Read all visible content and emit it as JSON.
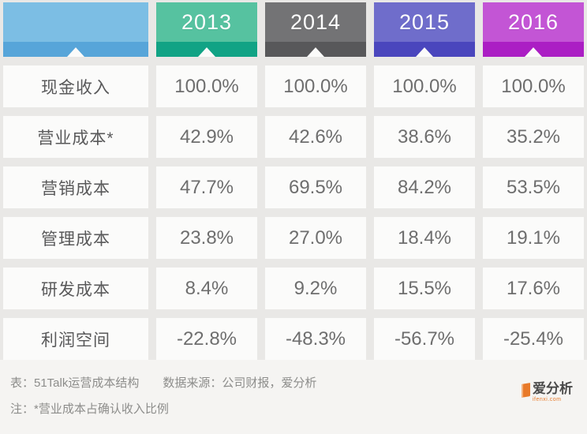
{
  "chart_data": {
    "type": "table",
    "title": "51Talk运营成本结构",
    "columns": [
      "",
      "2013",
      "2014",
      "2015",
      "2016"
    ],
    "rows": [
      {
        "label": "现金收入",
        "values_pct": [
          100.0,
          100.0,
          100.0,
          100.0
        ]
      },
      {
        "label": "营业成本*",
        "values_pct": [
          42.9,
          42.6,
          38.6,
          35.2
        ]
      },
      {
        "label": "营销成本",
        "values_pct": [
          47.7,
          69.5,
          84.2,
          53.5
        ]
      },
      {
        "label": "管理成本",
        "values_pct": [
          23.8,
          27.0,
          18.4,
          19.1
        ]
      },
      {
        "label": "研发成本",
        "values_pct": [
          8.4,
          9.2,
          15.5,
          17.6
        ]
      },
      {
        "label": "利润空间",
        "values_pct": [
          -22.8,
          -48.3,
          -56.7,
          -25.4
        ]
      }
    ],
    "source": "数据来源：公司财报，爱分析",
    "note": "注：*营业成本占确认收入比例"
  },
  "table": {
    "years": [
      "2013",
      "2014",
      "2015",
      "2016"
    ],
    "header_colors": [
      {
        "main": "#7cbee4",
        "strip": "#57a5d9"
      },
      {
        "main": "#56c2a0",
        "strip": "#11a385"
      },
      {
        "main": "#737375",
        "strip": "#58585a"
      },
      {
        "main": "#6f6dcb",
        "strip": "#4a46bd"
      },
      {
        "main": "#c355d5",
        "strip": "#ab1ec4"
      }
    ],
    "rows": [
      {
        "label": "现金收入",
        "values": [
          "100.0%",
          "100.0%",
          "100.0%",
          "100.0%"
        ]
      },
      {
        "label": "营业成本*",
        "values": [
          "42.9%",
          "42.6%",
          "38.6%",
          "35.2%"
        ]
      },
      {
        "label": "营销成本",
        "values": [
          "47.7%",
          "69.5%",
          "84.2%",
          "53.5%"
        ]
      },
      {
        "label": "管理成本",
        "values": [
          "23.8%",
          "27.0%",
          "18.4%",
          "19.1%"
        ]
      },
      {
        "label": "研发成本",
        "values": [
          "8.4%",
          "9.2%",
          "15.5%",
          "17.6%"
        ]
      },
      {
        "label": "利润空间",
        "values": [
          "-22.8%",
          "-48.3%",
          "-56.7%",
          "-25.4%"
        ]
      }
    ]
  },
  "footer": {
    "caption": "表：51Talk运营成本结构",
    "source": "数据来源：公司财报，爱分析",
    "note": "注：*营业成本占确认收入比例",
    "logo_text": "爱分析",
    "logo_sub": "ifenxi.com"
  }
}
